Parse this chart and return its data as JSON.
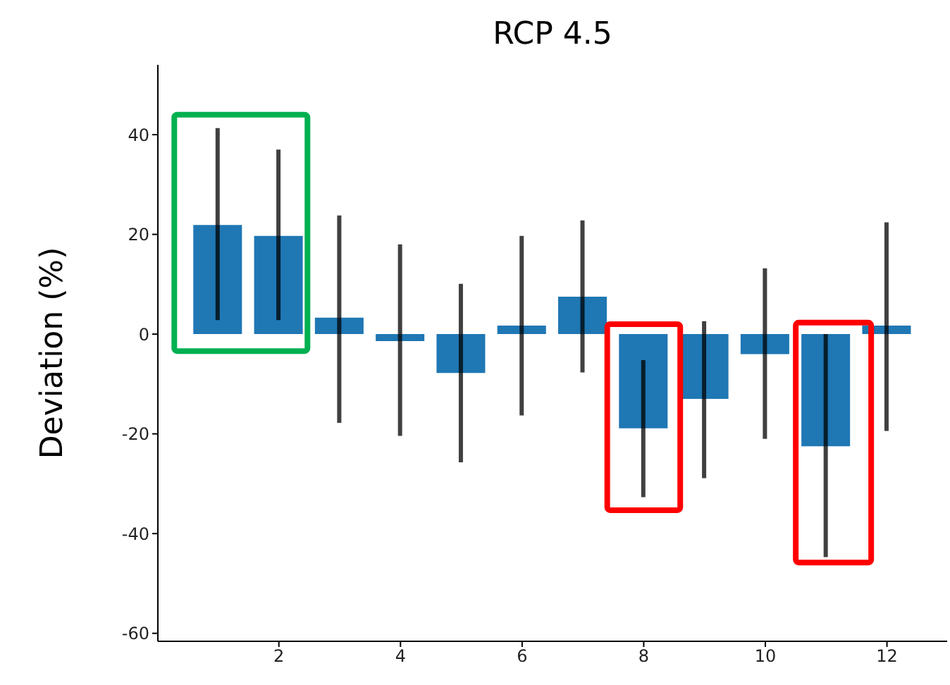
{
  "chart_data": {
    "type": "bar",
    "title": "RCP 4.5",
    "ylabel": "Deviation (%)",
    "x": [
      1,
      2,
      3,
      4,
      5,
      6,
      7,
      8,
      9,
      10,
      11,
      12
    ],
    "values": [
      21.9,
      19.7,
      3.3,
      -1.4,
      -7.8,
      1.7,
      7.5,
      -18.9,
      -13.0,
      -4.0,
      -22.5,
      1.7
    ],
    "errors": [
      [
        2.8,
        41.3
      ],
      [
        2.8,
        37.0
      ],
      [
        -17.8,
        23.8
      ],
      [
        -20.4,
        18.0
      ],
      [
        -25.7,
        10.1
      ],
      [
        -16.3,
        19.7
      ],
      [
        -7.7,
        22.8
      ],
      [
        -32.7,
        -5.2
      ],
      [
        -28.9,
        2.6
      ],
      [
        -21.0,
        13.2
      ],
      [
        -44.7,
        0.0
      ],
      [
        -19.4,
        22.4
      ]
    ],
    "color": "#1f77b4",
    "xlim": [
      0.01,
      12.99
    ],
    "xticks": [
      2,
      4,
      6,
      8,
      10,
      12
    ],
    "ylim": [
      -61.6,
      54
    ],
    "yticks": [
      -60,
      -40,
      -20,
      0,
      20,
      40
    ],
    "grid": false,
    "legend": false
  }
}
